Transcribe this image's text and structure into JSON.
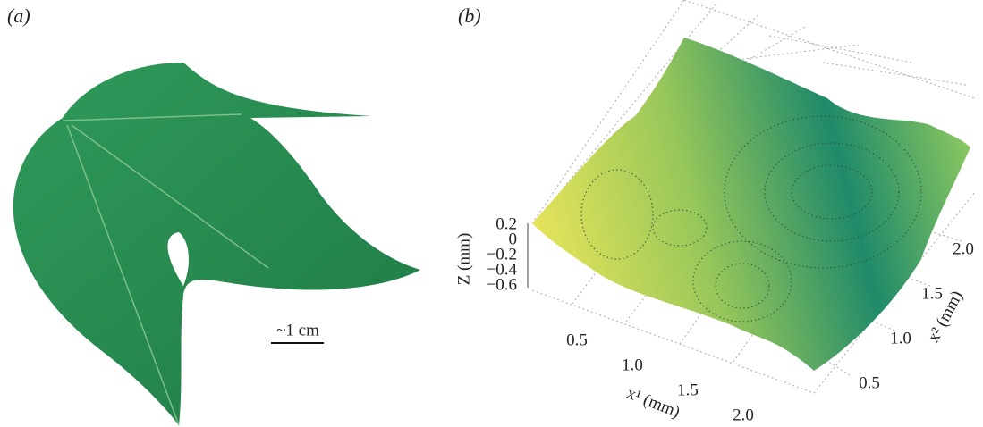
{
  "panel_a": {
    "label": "(a)",
    "scale_bar": "~1 cm"
  },
  "panel_b": {
    "label": "(b)",
    "z_axis": {
      "label": "Z (mm)",
      "ticks": [
        "0.2",
        "0",
        "−0.2",
        "−0.4",
        "−0.6"
      ]
    },
    "x1_axis": {
      "label": "x¹ (mm)",
      "ticks": [
        "0.5",
        "1.0",
        "1.5",
        "2.0"
      ]
    },
    "x2_axis": {
      "label": "x² (mm)",
      "ticks": [
        "0.5",
        "1.0",
        "1.5",
        "2.0"
      ]
    }
  }
}
